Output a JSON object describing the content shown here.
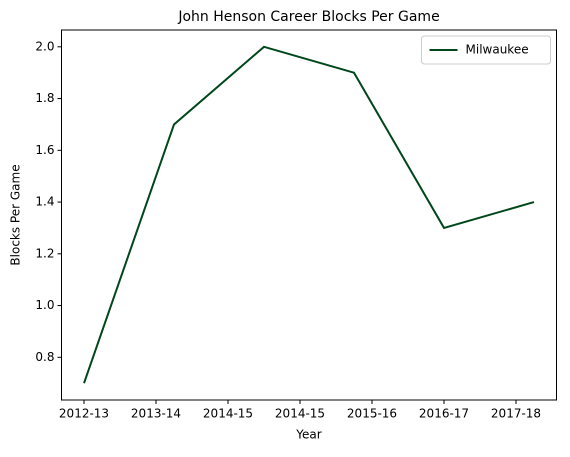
{
  "chart_data": {
    "type": "line",
    "title": "John Henson  Career Blocks Per Game",
    "xlabel": "Year",
    "ylabel": "Blocks Per Game",
    "x": [
      0,
      1,
      2,
      3,
      4,
      5
    ],
    "series": [
      {
        "name": "Milwaukee",
        "color": "#00471b",
        "values": [
          0.7,
          1.7,
          2.0,
          1.9,
          1.3,
          1.4
        ]
      }
    ],
    "xlim": [
      -0.25,
      5.25
    ],
    "xticks": [
      {
        "value": 0,
        "label": "2012-13"
      },
      {
        "value": 0.8,
        "label": "2013-14"
      },
      {
        "value": 1.6,
        "label": "2014-15"
      },
      {
        "value": 2.4,
        "label": "2014-15"
      },
      {
        "value": 3.2,
        "label": "2015-16"
      },
      {
        "value": 4.0,
        "label": "2016-17"
      },
      {
        "value": 4.8,
        "label": "2017-18"
      }
    ],
    "ylim": [
      0.635,
      2.065
    ],
    "yticks": [
      {
        "value": 0.8,
        "label": "0.8"
      },
      {
        "value": 1.0,
        "label": "1.0"
      },
      {
        "value": 1.2,
        "label": "1.2"
      },
      {
        "value": 1.4,
        "label": "1.4"
      },
      {
        "value": 1.6,
        "label": "1.6"
      },
      {
        "value": 1.8,
        "label": "1.8"
      },
      {
        "value": 2.0,
        "label": "2.0"
      }
    ],
    "legend": "upper right"
  }
}
